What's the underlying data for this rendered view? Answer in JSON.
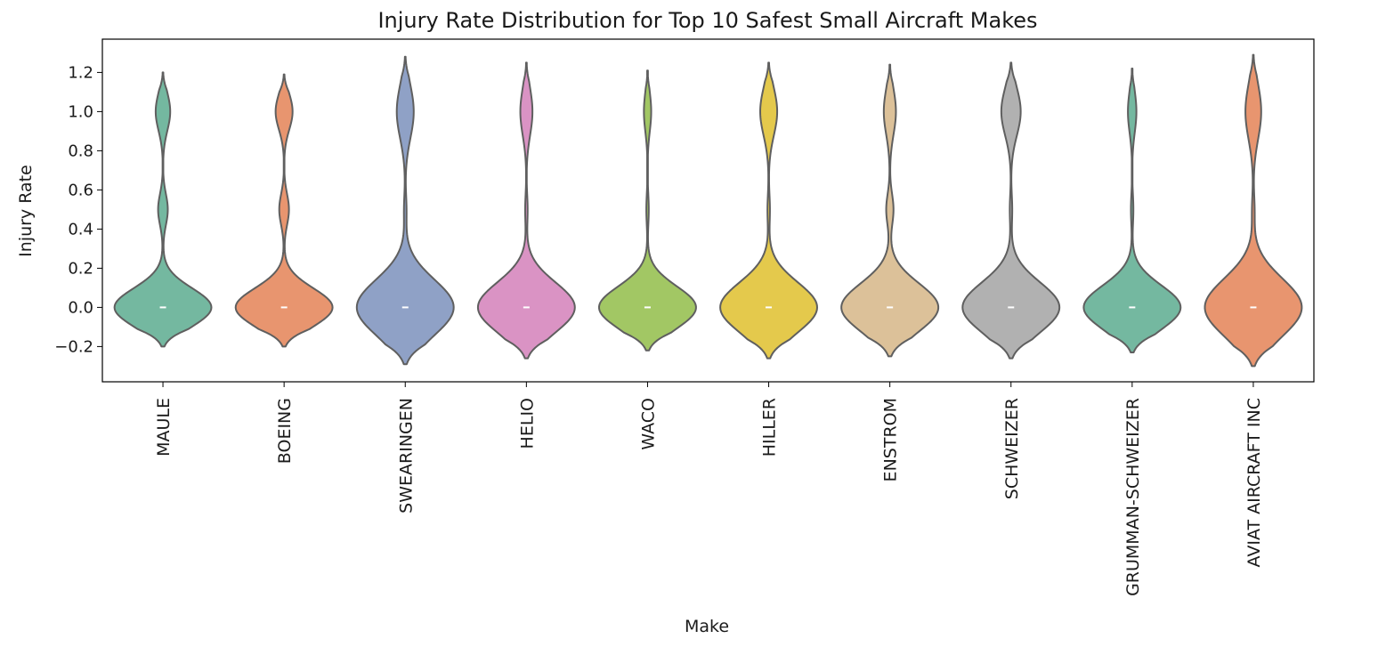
{
  "chart_data": {
    "type": "violin",
    "title": "Injury Rate Distribution for Top 10 Safest Small Aircraft Makes",
    "xlabel": "Make",
    "ylabel": "Injury Rate",
    "ylim": [
      -0.38,
      1.37
    ],
    "yticks": [
      -0.2,
      0.0,
      0.2,
      0.4,
      0.6,
      0.8,
      1.0,
      1.2
    ],
    "ytick_labels": [
      "−0.2",
      "0.0",
      "0.2",
      "0.4",
      "0.6",
      "0.8",
      "1.0",
      "1.2"
    ],
    "grid": false,
    "legend": "none",
    "categories": [
      "MAULE",
      "BOEING",
      "SWEARINGEN",
      "HELIO",
      "WACO",
      "HILLER",
      "ENSTROM",
      "SCHWEIZER",
      "GRUMMAN-SCHWEIZER",
      "AVIAT AIRCRAFT INC"
    ],
    "median": [
      0,
      0,
      0,
      0,
      0,
      0,
      0,
      0,
      0,
      0
    ],
    "violin_extent": [
      [
        -0.2,
        1.2
      ],
      [
        -0.2,
        1.19
      ],
      [
        -0.29,
        1.28
      ],
      [
        -0.26,
        1.25
      ],
      [
        -0.22,
        1.21
      ],
      [
        -0.26,
        1.25
      ],
      [
        -0.25,
        1.24
      ],
      [
        -0.26,
        1.25
      ],
      [
        -0.23,
        1.22
      ],
      [
        -0.3,
        1.29
      ]
    ],
    "colors": [
      "#74b8a0",
      "#e8956f",
      "#8fa1c6",
      "#da93c4",
      "#a2c764",
      "#e4c94c",
      "#dcc199",
      "#b1b1b1",
      "#74b8a0",
      "#e8956f"
    ],
    "edge_color": "#5f5f5f",
    "median_color": "#ffffff",
    "violin_shapes": [
      {
        "w0": 0.8,
        "w1": 0.12,
        "w05": 0.08
      },
      {
        "w0": 0.8,
        "w1": 0.14,
        "w05": 0.08
      },
      {
        "w0": 0.8,
        "w1": 0.14,
        "w05": 0.02
      },
      {
        "w0": 0.8,
        "w1": 0.1,
        "w05": 0.02
      },
      {
        "w0": 0.8,
        "w1": 0.06,
        "w05": 0.02
      },
      {
        "w0": 0.8,
        "w1": 0.14,
        "w05": 0.02
      },
      {
        "w0": 0.8,
        "w1": 0.1,
        "w05": 0.06
      },
      {
        "w0": 0.8,
        "w1": 0.16,
        "w05": 0.02
      },
      {
        "w0": 0.8,
        "w1": 0.07,
        "w05": 0.02
      },
      {
        "w0": 0.8,
        "w1": 0.13,
        "w05": 0.02
      }
    ]
  }
}
